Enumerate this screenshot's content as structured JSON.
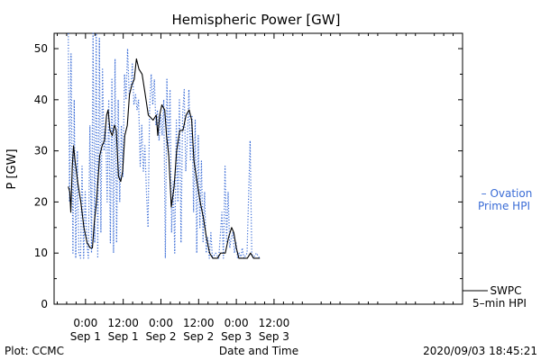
{
  "chart_data": {
    "type": "line",
    "title": "Hemispheric Power [GW]",
    "ylabel": "P [GW]",
    "xlabel": "Date and Time",
    "ylim": [
      0,
      53
    ],
    "yticks": [
      0,
      10,
      20,
      30,
      40,
      50
    ],
    "xlim": [
      -10,
      120
    ],
    "xticks": [
      {
        "x": 0,
        "time": "0:00",
        "date": "Sep 1"
      },
      {
        "x": 12,
        "time": "12:00",
        "date": "Sep 1"
      },
      {
        "x": 24,
        "time": "0:00",
        "date": "Sep 2"
      },
      {
        "x": 36,
        "time": "12:00",
        "date": "Sep 2"
      },
      {
        "x": 48,
        "time": "0:00",
        "date": "Sep 3"
      },
      {
        "x": 60,
        "time": "12:00",
        "date": "Sep 3"
      }
    ],
    "grid": false,
    "legend_placement": "right",
    "series": [
      {
        "name": "SWPC 5-min HPI",
        "line_style": "solid",
        "color": "#000000",
        "points": [
          [
            -5.5,
            23
          ],
          [
            -5.0,
            22
          ],
          [
            -4.7,
            18
          ],
          [
            -4.2,
            27
          ],
          [
            -3.8,
            31
          ],
          [
            -3.3,
            28
          ],
          [
            -2.5,
            24
          ],
          [
            -1.5,
            20
          ],
          [
            -0.5,
            15
          ],
          [
            0.5,
            12
          ],
          [
            1.5,
            11
          ],
          [
            2.2,
            11
          ],
          [
            2.8,
            16
          ],
          [
            3.5,
            20
          ],
          [
            4.5,
            29
          ],
          [
            5.3,
            31
          ],
          [
            6.0,
            32
          ],
          [
            6.7,
            37
          ],
          [
            7.2,
            38
          ],
          [
            7.8,
            34
          ],
          [
            8.5,
            33
          ],
          [
            9.2,
            35
          ],
          [
            9.8,
            34
          ],
          [
            10.5,
            25
          ],
          [
            11.2,
            24
          ],
          [
            11.8,
            26
          ],
          [
            12.5,
            33
          ],
          [
            13.3,
            35
          ],
          [
            14.0,
            41
          ],
          [
            14.8,
            43
          ],
          [
            15.5,
            44
          ],
          [
            16.2,
            48
          ],
          [
            17.0,
            46
          ],
          [
            18.0,
            45
          ],
          [
            19.0,
            41
          ],
          [
            20.0,
            37
          ],
          [
            21.5,
            36
          ],
          [
            22.5,
            37
          ],
          [
            23.0,
            33
          ],
          [
            23.6,
            37
          ],
          [
            24.3,
            39
          ],
          [
            25.2,
            38
          ],
          [
            25.8,
            33
          ],
          [
            26.5,
            29
          ],
          [
            27.3,
            19
          ],
          [
            28.2,
            23
          ],
          [
            29.0,
            30
          ],
          [
            30.0,
            34
          ],
          [
            31.0,
            34
          ],
          [
            32.0,
            37
          ],
          [
            33.0,
            38
          ],
          [
            33.8,
            36
          ],
          [
            34.5,
            28
          ],
          [
            35.5,
            24
          ],
          [
            36.5,
            20
          ],
          [
            37.5,
            17
          ],
          [
            38.5,
            13
          ],
          [
            39.5,
            10
          ],
          [
            40.5,
            9
          ],
          [
            42.0,
            9
          ],
          [
            43.0,
            10
          ],
          [
            44.5,
            10
          ],
          [
            45.5,
            13
          ],
          [
            46.5,
            15
          ],
          [
            47.2,
            14
          ],
          [
            48.0,
            11
          ],
          [
            48.8,
            9
          ],
          [
            50.0,
            9
          ],
          [
            51.5,
            9
          ],
          [
            52.5,
            10
          ],
          [
            53.5,
            9
          ],
          [
            54.5,
            9
          ],
          [
            55.5,
            9
          ]
        ]
      },
      {
        "name": "Ovation Prime HPI",
        "line_style": "dotted",
        "color": "#3a6cd6",
        "points": [
          [
            -5.5,
            53
          ],
          [
            -5.1,
            20
          ],
          [
            -4.6,
            49
          ],
          [
            -4.0,
            10
          ],
          [
            -3.6,
            40
          ],
          [
            -3.1,
            9
          ],
          [
            -2.6,
            30
          ],
          [
            -2.1,
            10
          ],
          [
            -1.6,
            9
          ],
          [
            -1.1,
            27
          ],
          [
            -0.6,
            9
          ],
          [
            -0.1,
            22
          ],
          [
            0.4,
            12
          ],
          [
            0.9,
            9
          ],
          [
            1.4,
            35
          ],
          [
            1.9,
            10
          ],
          [
            2.4,
            53
          ],
          [
            2.9,
            12
          ],
          [
            3.4,
            53
          ],
          [
            3.9,
            9
          ],
          [
            4.4,
            52
          ],
          [
            4.9,
            14
          ],
          [
            5.4,
            46
          ],
          [
            5.9,
            30
          ],
          [
            6.4,
            35
          ],
          [
            6.9,
            20
          ],
          [
            7.4,
            40
          ],
          [
            7.9,
            12
          ],
          [
            8.4,
            44
          ],
          [
            8.9,
            10
          ],
          [
            9.4,
            48
          ],
          [
            9.9,
            12
          ],
          [
            10.4,
            40
          ],
          [
            10.9,
            20
          ],
          [
            11.4,
            35
          ],
          [
            11.9,
            25
          ],
          [
            12.4,
            45
          ],
          [
            12.9,
            40
          ],
          [
            13.4,
            50
          ],
          [
            13.9,
            41
          ],
          [
            14.4,
            42
          ],
          [
            14.9,
            47
          ],
          [
            15.4,
            39
          ],
          [
            15.9,
            41
          ],
          [
            16.4,
            38
          ],
          [
            16.9,
            40
          ],
          [
            17.4,
            27
          ],
          [
            17.9,
            35
          ],
          [
            18.4,
            26
          ],
          [
            18.9,
            31
          ],
          [
            19.4,
            22
          ],
          [
            19.9,
            15
          ],
          [
            20.4,
            38
          ],
          [
            20.9,
            45
          ],
          [
            21.4,
            39
          ],
          [
            21.9,
            44
          ],
          [
            22.4,
            35
          ],
          [
            22.9,
            38
          ],
          [
            23.4,
            32
          ],
          [
            23.9,
            37
          ],
          [
            24.4,
            33
          ],
          [
            24.9,
            40
          ],
          [
            25.4,
            9
          ],
          [
            25.9,
            44
          ],
          [
            26.4,
            29
          ],
          [
            26.9,
            42
          ],
          [
            27.4,
            14
          ],
          [
            27.9,
            24
          ],
          [
            28.4,
            10
          ],
          [
            28.9,
            36
          ],
          [
            29.4,
            20
          ],
          [
            29.9,
            40
          ],
          [
            30.4,
            12
          ],
          [
            30.9,
            37
          ],
          [
            31.4,
            42
          ],
          [
            31.9,
            26
          ],
          [
            32.4,
            32
          ],
          [
            32.9,
            42
          ],
          [
            33.4,
            28
          ],
          [
            33.9,
            37
          ],
          [
            34.4,
            18
          ],
          [
            34.9,
            36
          ],
          [
            35.4,
            10
          ],
          [
            35.9,
            33
          ],
          [
            36.4,
            15
          ],
          [
            36.9,
            28
          ],
          [
            37.4,
            12
          ],
          [
            37.9,
            22
          ],
          [
            38.4,
            10
          ],
          [
            38.9,
            13
          ],
          [
            39.4,
            9
          ],
          [
            39.9,
            14
          ],
          [
            40.4,
            9
          ],
          [
            41.4,
            10
          ],
          [
            42.4,
            9
          ],
          [
            43.4,
            18
          ],
          [
            43.9,
            9
          ],
          [
            44.4,
            27
          ],
          [
            44.9,
            12
          ],
          [
            45.4,
            22
          ],
          [
            45.9,
            11
          ],
          [
            46.4,
            13
          ],
          [
            46.9,
            14
          ],
          [
            47.4,
            10
          ],
          [
            47.9,
            12
          ],
          [
            48.4,
            9
          ],
          [
            48.9,
            10
          ],
          [
            49.4,
            9
          ],
          [
            49.9,
            11
          ],
          [
            50.4,
            9
          ],
          [
            51.4,
            10
          ],
          [
            52.4,
            32
          ],
          [
            52.9,
            10
          ],
          [
            53.4,
            9
          ],
          [
            54.4,
            10
          ],
          [
            55.4,
            9
          ]
        ]
      }
    ],
    "legend": [
      {
        "series": "Ovation Prime HPI",
        "lines": [
          "– Ovation",
          "Prime HPI"
        ],
        "color": "#3a6cd6"
      },
      {
        "series": "SWPC 5-min HPI",
        "lines": [
          "SWPC",
          "5–min HPI"
        ],
        "color": "#000000"
      }
    ]
  },
  "footer": {
    "plot_source": "Plot: CCMC",
    "timestamp": "2020/09/03 18:45:21"
  }
}
